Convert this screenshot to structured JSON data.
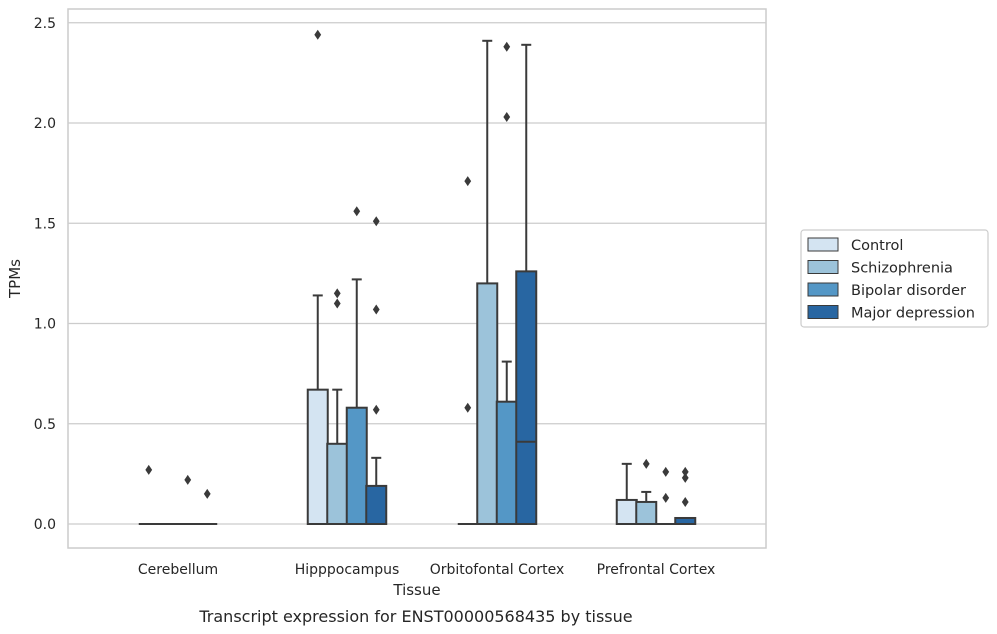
{
  "caption": "Transcript expression for ENST00000568435 by tissue",
  "chart_data": {
    "type": "box",
    "xlabel": "Tissue",
    "ylabel": "TPMs",
    "ylim": [
      -0.12,
      2.57
    ],
    "yticks": [
      "0.0",
      "0.5",
      "1.0",
      "1.5",
      "2.0",
      "2.5"
    ],
    "grid": "horizontal",
    "legend_position": "right",
    "categories": [
      "Cerebellum",
      "Hipppocampus",
      "Orbitofontal Cortex",
      "Prefrontal Cortex"
    ],
    "series": [
      {
        "name": "Control",
        "color": "#d4e4f2",
        "boxes": [
          {
            "q1": 0,
            "median": 0,
            "q3": 0,
            "whisker_low": 0,
            "whisker_high": 0,
            "outliers": [
              0.27
            ]
          },
          {
            "q1": 0,
            "median": 0,
            "q3": 0.67,
            "whisker_low": 0,
            "whisker_high": 1.14,
            "outliers": [
              2.44
            ]
          },
          {
            "q1": 0,
            "median": 0,
            "q3": 0,
            "whisker_low": 0,
            "whisker_high": 0,
            "outliers": [
              0.58,
              1.71
            ]
          },
          {
            "q1": 0,
            "median": 0,
            "q3": 0.12,
            "whisker_low": 0,
            "whisker_high": 0.3,
            "outliers": []
          }
        ]
      },
      {
        "name": "Schizophrenia",
        "color": "#9cc3da",
        "boxes": [
          {
            "q1": 0,
            "median": 0,
            "q3": 0,
            "whisker_low": 0,
            "whisker_high": 0,
            "outliers": []
          },
          {
            "q1": 0,
            "median": 0,
            "q3": 0.4,
            "whisker_low": 0,
            "whisker_high": 0.67,
            "outliers": [
              1.1,
              1.15
            ]
          },
          {
            "q1": 0,
            "median": 0,
            "q3": 1.2,
            "whisker_low": 0,
            "whisker_high": 2.41,
            "outliers": []
          },
          {
            "q1": 0,
            "median": 0,
            "q3": 0.11,
            "whisker_low": 0,
            "whisker_high": 0.16,
            "outliers": [
              0.3
            ]
          }
        ]
      },
      {
        "name": "Bipolar disorder",
        "color": "#5497c6",
        "boxes": [
          {
            "q1": 0,
            "median": 0,
            "q3": 0,
            "whisker_low": 0,
            "whisker_high": 0,
            "outliers": [
              0.22
            ]
          },
          {
            "q1": 0,
            "median": 0,
            "q3": 0.58,
            "whisker_low": 0,
            "whisker_high": 1.22,
            "outliers": [
              1.56
            ]
          },
          {
            "q1": 0,
            "median": 0,
            "q3": 0.61,
            "whisker_low": 0,
            "whisker_high": 0.81,
            "outliers": [
              2.03,
              2.38
            ]
          },
          {
            "q1": 0,
            "median": 0,
            "q3": 0,
            "whisker_low": 0,
            "whisker_high": 0,
            "outliers": [
              0.13,
              0.26
            ]
          }
        ]
      },
      {
        "name": "Major depression",
        "color": "#2866a2",
        "boxes": [
          {
            "q1": 0,
            "median": 0,
            "q3": 0,
            "whisker_low": 0,
            "whisker_high": 0,
            "outliers": [
              0.15
            ]
          },
          {
            "q1": 0,
            "median": 0,
            "q3": 0.19,
            "whisker_low": 0,
            "whisker_high": 0.33,
            "outliers": [
              0.57,
              1.07,
              1.51
            ]
          },
          {
            "q1": 0,
            "median": 0.41,
            "q3": 1.26,
            "whisker_low": 0,
            "whisker_high": 2.39,
            "outliers": []
          },
          {
            "q1": 0,
            "median": 0,
            "q3": 0.03,
            "whisker_low": 0,
            "whisker_high": 0.03,
            "outliers": [
              0.11,
              0.23,
              0.26
            ]
          }
        ]
      }
    ]
  },
  "style": {
    "frame_color": "#cccccc",
    "grid_color": "#cccccc",
    "line_color": "#3a3a3a"
  }
}
